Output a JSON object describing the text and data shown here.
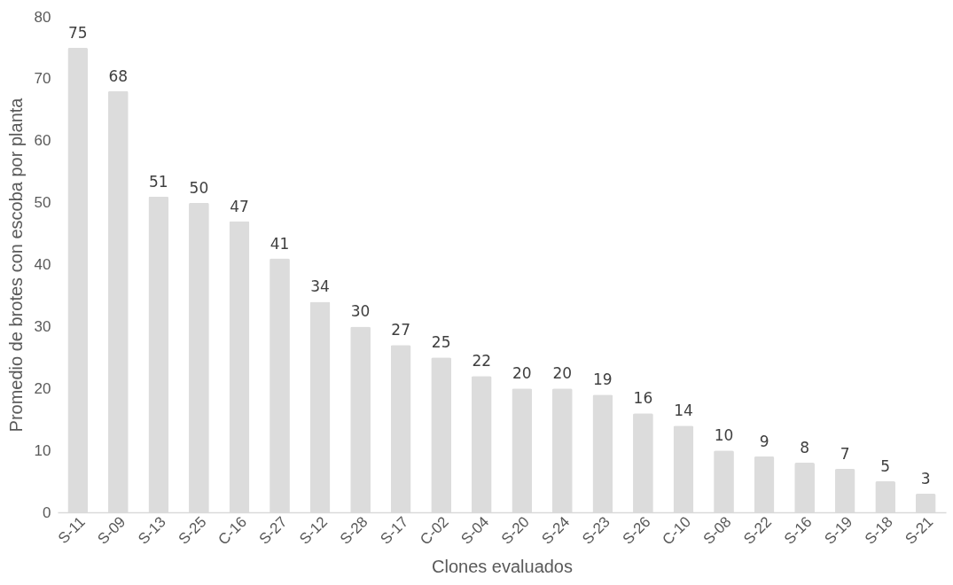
{
  "chart_data": {
    "type": "bar",
    "xlabel": "Clones evaluados",
    "ylabel": "Promedio de brotes con escoba por planta",
    "categories": [
      "S-11",
      "S-09",
      "S-13",
      "S-25",
      "C-16",
      "S-27",
      "S-12",
      "S-28",
      "S-17",
      "C-02",
      "S-04",
      "S-20",
      "S-24",
      "S-23",
      "S-26",
      "C-10",
      "S-08",
      "S-22",
      "S-16",
      "S-19",
      "S-18",
      "S-21"
    ],
    "values": [
      75,
      68,
      51,
      50,
      47,
      41,
      34,
      30,
      27,
      25,
      22,
      20,
      20,
      19,
      16,
      14,
      10,
      9,
      8,
      7,
      5,
      3
    ],
    "color": "#dcdcdc",
    "ylim": [
      0,
      80
    ],
    "yticks": [
      0,
      10,
      20,
      30,
      40,
      50,
      60,
      70,
      80
    ],
    "grid": false,
    "data_labels": true
  }
}
